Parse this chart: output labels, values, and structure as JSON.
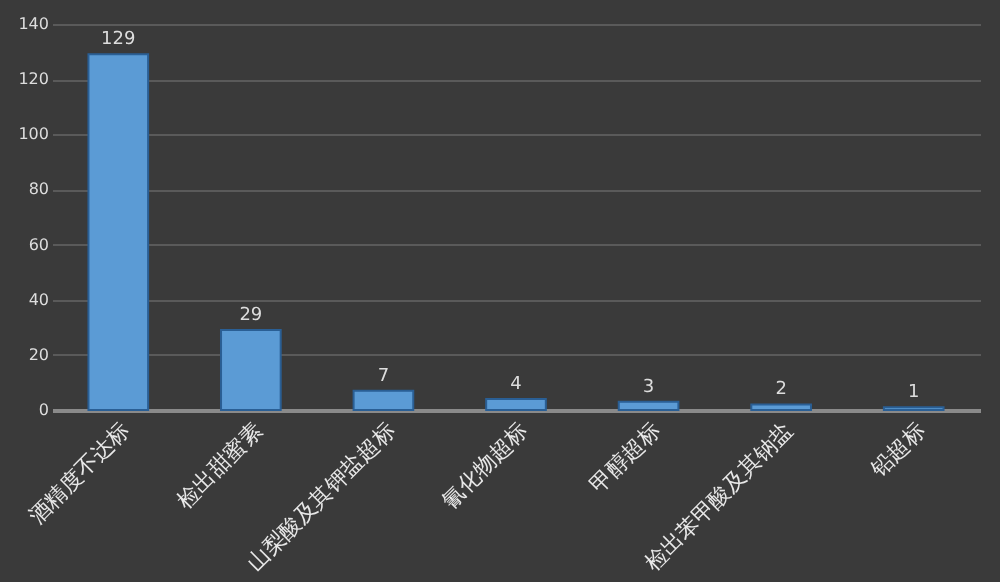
{
  "chart_data": {
    "type": "bar",
    "categories": [
      "酒精度不达标",
      "检出甜蜜素",
      "山梨酸及其钾盐超标",
      "氰化物超标",
      "甲醇超标",
      "检出苯甲酸及其钠盐",
      "铅超标"
    ],
    "values": [
      129,
      29,
      7,
      4,
      3,
      2,
      1
    ],
    "color": "#5b9bd5",
    "ylim": [
      0,
      140
    ],
    "yticks": [
      0,
      20,
      40,
      60,
      80,
      100,
      120,
      140
    ],
    "grid": "y",
    "data_labels": true
  }
}
